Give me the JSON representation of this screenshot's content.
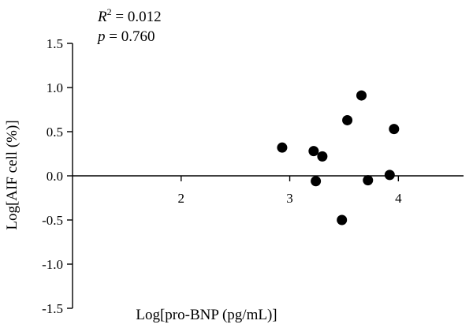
{
  "chart_data": {
    "type": "scatter",
    "xlabel": "Log[pro-BNP (pg/mL)]",
    "ylabel": "Log[AIF cell (%)]",
    "xlim": [
      1.0,
      4.6
    ],
    "ylim": [
      -1.5,
      1.5
    ],
    "x_ticks": [
      2,
      3,
      4
    ],
    "y_ticks": [
      -1.5,
      -1.0,
      -0.5,
      0.0,
      0.5,
      1.0,
      1.5
    ],
    "x_tick_labels": [
      "2",
      "3",
      "4"
    ],
    "y_tick_labels": [
      "-1.5",
      "-1.0",
      "-0.5",
      "0.0",
      "0.5",
      "1.0",
      "1.5"
    ],
    "x_axis_crosses_y_at": 0,
    "grid": false,
    "color": "#000000",
    "annotations": {
      "r2_symbol": "R",
      "r2_exponent": "2",
      "r2_value": " = 0.012",
      "p_symbol": "p",
      "p_value": " = 0.760"
    },
    "points": [
      {
        "x": 2.93,
        "y": 0.32
      },
      {
        "x": 3.22,
        "y": 0.28
      },
      {
        "x": 3.24,
        "y": -0.06
      },
      {
        "x": 3.3,
        "y": 0.22
      },
      {
        "x": 3.48,
        "y": -0.5
      },
      {
        "x": 3.53,
        "y": 0.63
      },
      {
        "x": 3.66,
        "y": 0.91
      },
      {
        "x": 3.72,
        "y": -0.05
      },
      {
        "x": 3.92,
        "y": 0.01
      },
      {
        "x": 3.96,
        "y": 0.53
      }
    ]
  }
}
